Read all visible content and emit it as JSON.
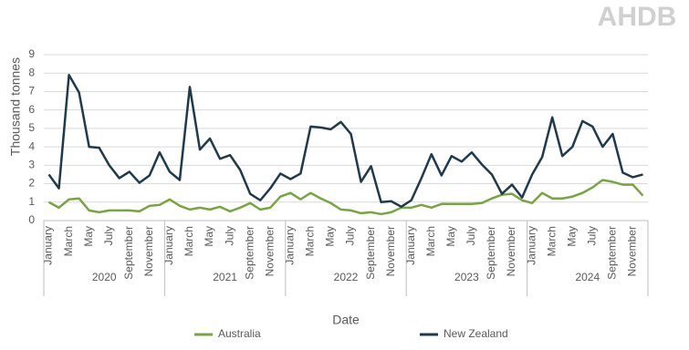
{
  "logo": "AHDB",
  "chart_data": {
    "type": "line",
    "y_label": "Thousand tonnes",
    "x_label": "Date",
    "categories": [
      "January",
      null,
      "March",
      null,
      "May",
      null,
      "July",
      null,
      "September",
      null,
      "November",
      null,
      "January",
      null,
      "March",
      null,
      "May",
      null,
      "July",
      null,
      "September",
      null,
      "November",
      null,
      "January",
      null,
      "March",
      null,
      "May",
      null,
      "July",
      null,
      "September",
      null,
      "November",
      null,
      "January",
      null,
      "March",
      null,
      "May",
      null,
      "July",
      null,
      "September",
      null,
      "November",
      null,
      "January",
      null,
      "March",
      null,
      "May",
      null,
      "July",
      null,
      "September",
      null,
      "November",
      null
    ],
    "x_groups": [
      "2020",
      "2021",
      "2022",
      "2023",
      "2024"
    ],
    "series": [
      {
        "name": "Australia",
        "color": "#78a540",
        "values": [
          1.0,
          0.7,
          1.15,
          1.2,
          0.55,
          0.45,
          0.55,
          0.55,
          0.55,
          0.5,
          0.8,
          0.85,
          1.15,
          0.8,
          0.6,
          0.7,
          0.6,
          0.75,
          0.5,
          0.7,
          0.95,
          0.6,
          0.7,
          1.3,
          1.5,
          1.15,
          1.5,
          1.2,
          0.95,
          0.6,
          0.55,
          0.4,
          0.45,
          0.35,
          0.45,
          0.7,
          0.7,
          0.85,
          0.7,
          0.9,
          0.9,
          0.9,
          0.9,
          0.95,
          1.2,
          1.4,
          1.45,
          1.1,
          0.95,
          1.5,
          1.2,
          1.2,
          1.3,
          1.5,
          1.8,
          2.2,
          2.1,
          1.95,
          1.95,
          1.35
        ]
      },
      {
        "name": "New Zealand",
        "color": "#1e3a4c",
        "values": [
          2.5,
          1.75,
          7.9,
          6.95,
          4.0,
          3.95,
          3.0,
          2.3,
          2.65,
          2.05,
          2.45,
          3.7,
          2.65,
          2.2,
          7.25,
          3.85,
          4.45,
          3.35,
          3.55,
          2.75,
          1.45,
          1.1,
          1.75,
          2.55,
          2.25,
          2.55,
          5.1,
          5.05,
          4.95,
          5.35,
          4.7,
          2.1,
          2.95,
          1.0,
          1.05,
          0.75,
          1.1,
          2.3,
          3.6,
          2.45,
          3.5,
          3.2,
          3.7,
          3.05,
          2.5,
          1.45,
          1.95,
          1.25,
          2.5,
          3.45,
          5.6,
          3.5,
          4.0,
          5.4,
          5.1,
          4.0,
          4.7,
          2.6,
          2.35,
          2.5
        ]
      }
    ],
    "ylim": [
      0,
      9
    ],
    "yticks": [
      0,
      1,
      2,
      3,
      4,
      5,
      6,
      7,
      8,
      9
    ],
    "grid": true,
    "legend": "bottom"
  }
}
